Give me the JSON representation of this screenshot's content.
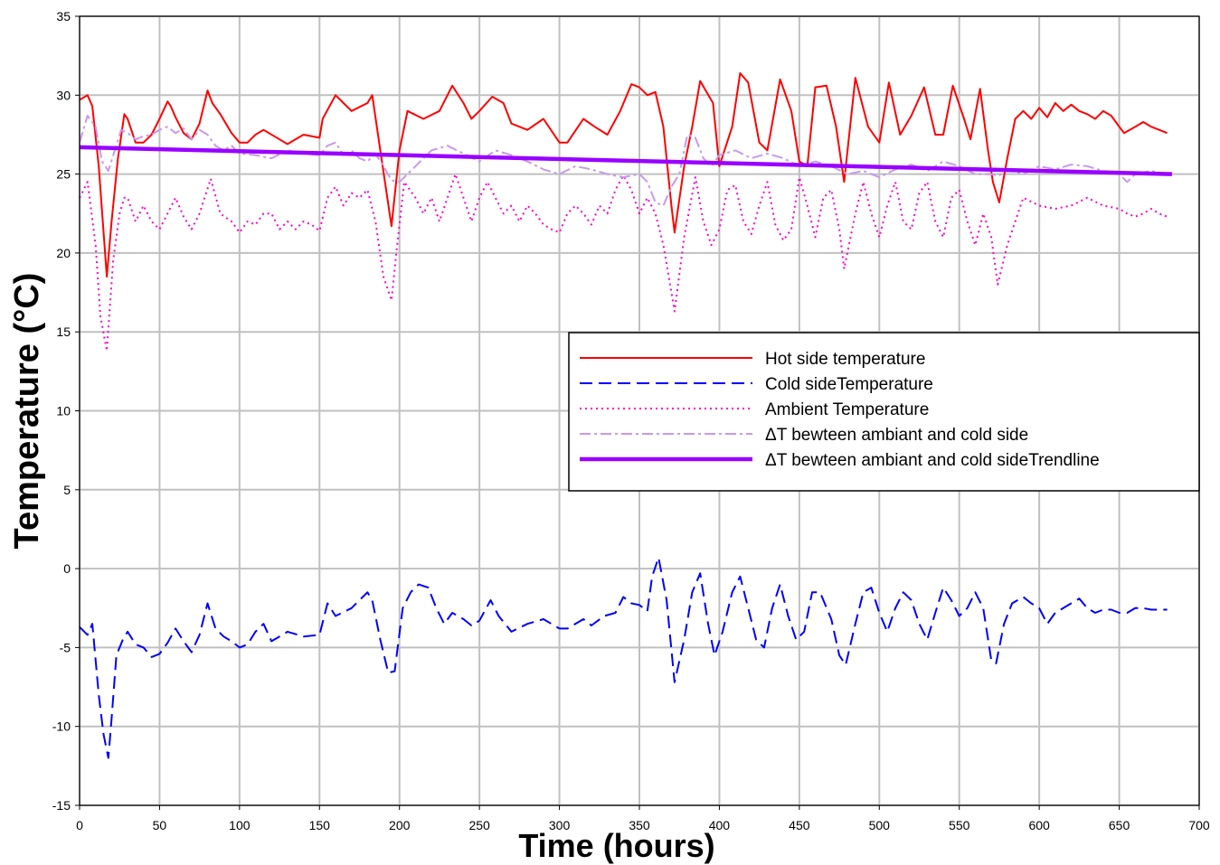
{
  "chart_data": {
    "type": "line",
    "xlabel": "Time (hours)",
    "ylabel": "Temperature (°C)",
    "xlim": [
      0,
      700
    ],
    "ylim": [
      -15,
      35
    ],
    "xticks": [
      0,
      50,
      100,
      150,
      200,
      250,
      300,
      350,
      400,
      450,
      500,
      550,
      600,
      650,
      700
    ],
    "yticks": [
      -15,
      -10,
      -5,
      0,
      5,
      10,
      15,
      20,
      25,
      30,
      35
    ],
    "grid": true,
    "legend_position": "center-right",
    "series": [
      {
        "name": "Hot side temperature",
        "color": "#ff0000",
        "style": "solid",
        "x": [
          0,
          5,
          8,
          12,
          17,
          20,
          24,
          28,
          30,
          35,
          40,
          45,
          50,
          55,
          57,
          60,
          65,
          70,
          75,
          80,
          83,
          88,
          95,
          100,
          105,
          110,
          115,
          125,
          130,
          140,
          150,
          152,
          160,
          170,
          180,
          183,
          188,
          195,
          200,
          205,
          215,
          225,
          233,
          240,
          245,
          250,
          258,
          265,
          270,
          280,
          290,
          300,
          305,
          315,
          322,
          330,
          338,
          345,
          350,
          355,
          360,
          365,
          370,
          372,
          378,
          383,
          388,
          396,
          400,
          408,
          413,
          418,
          425,
          430,
          438,
          445,
          450,
          455,
          460,
          467,
          473,
          478,
          485,
          493,
          500,
          506,
          513,
          520,
          528,
          535,
          540,
          546,
          553,
          557,
          563,
          568,
          571,
          575,
          580,
          585,
          590,
          595,
          600,
          605,
          610,
          615,
          620,
          625,
          630,
          635,
          640,
          645,
          650,
          653,
          660,
          665,
          670,
          675,
          680
        ],
        "y": [
          29.7,
          30.0,
          29.3,
          25.5,
          18.5,
          22,
          26.0,
          28.8,
          28.5,
          27.0,
          27.0,
          27.5,
          28.5,
          29.6,
          29.3,
          28.6,
          27.6,
          27.2,
          28.2,
          30.3,
          29.5,
          28.8,
          27.6,
          27.0,
          27.0,
          27.5,
          27.8,
          27.2,
          26.9,
          27.5,
          27.3,
          28.5,
          30.0,
          29.0,
          29.5,
          30.0,
          26.5,
          21.7,
          26.5,
          29.0,
          28.5,
          29.0,
          30.6,
          29.5,
          28.5,
          29.0,
          29.9,
          29.5,
          28.2,
          27.8,
          28.5,
          27.0,
          27.0,
          28.5,
          28.0,
          27.5,
          29.0,
          30.7,
          30.5,
          30.0,
          30.2,
          28.0,
          23.0,
          21.3,
          25.5,
          28.0,
          30.9,
          29.5,
          25.5,
          28.0,
          31.4,
          30.8,
          27.0,
          26.5,
          31.0,
          29.0,
          25.8,
          25.5,
          30.5,
          30.6,
          28.0,
          24.5,
          31.1,
          28.0,
          27.0,
          30.8,
          27.5,
          28.7,
          30.5,
          27.5,
          27.5,
          30.6,
          28.5,
          27.2,
          30.4,
          26.5,
          24.5,
          23.2,
          26.0,
          28.5,
          29.0,
          28.5,
          29.2,
          28.6,
          29.5,
          29.0,
          29.4,
          29.0,
          28.8,
          28.5,
          29.0,
          28.7,
          28.0,
          27.6,
          28.0,
          28.3,
          28.0,
          27.8,
          27.6
        ]
      },
      {
        "name": "Cold sideTemperature",
        "color": "#0000ff",
        "style": "dashed",
        "x": [
          0,
          5,
          8,
          12,
          15,
          18,
          20,
          23,
          27,
          30,
          35,
          40,
          45,
          50,
          55,
          60,
          65,
          70,
          75,
          80,
          85,
          90,
          95,
          100,
          105,
          110,
          115,
          120,
          125,
          130,
          140,
          150,
          155,
          160,
          170,
          175,
          180,
          183,
          188,
          193,
          197,
          202,
          207,
          212,
          218,
          223,
          228,
          233,
          240,
          245,
          250,
          257,
          262,
          270,
          280,
          290,
          300,
          305,
          315,
          320,
          328,
          335,
          340,
          345,
          350,
          355,
          358,
          362,
          367,
          372,
          378,
          383,
          388,
          393,
          397,
          402,
          408,
          413,
          418,
          423,
          428,
          433,
          438,
          443,
          448,
          453,
          458,
          463,
          470,
          475,
          479,
          485,
          490,
          495,
          500,
          505,
          510,
          515,
          520,
          525,
          530,
          535,
          540,
          545,
          550,
          555,
          560,
          565,
          570,
          573,
          578,
          583,
          590,
          595,
          600,
          605,
          610,
          615,
          620,
          625,
          630,
          635,
          640,
          645,
          650,
          655,
          660,
          665,
          670,
          675,
          680
        ],
        "y": [
          -3.7,
          -4.2,
          -3.5,
          -8.0,
          -10.5,
          -12.0,
          -9.5,
          -5.5,
          -4.5,
          -4.0,
          -4.8,
          -5.0,
          -5.6,
          -5.4,
          -4.7,
          -3.8,
          -4.6,
          -5.3,
          -4.2,
          -2.2,
          -3.8,
          -4.3,
          -4.6,
          -5.0,
          -4.8,
          -4.0,
          -3.5,
          -4.6,
          -4.3,
          -4.0,
          -4.3,
          -4.2,
          -2.2,
          -3.0,
          -2.5,
          -2.0,
          -1.5,
          -2.0,
          -4.5,
          -6.6,
          -6.5,
          -2.5,
          -1.5,
          -1.0,
          -1.2,
          -2.5,
          -3.5,
          -2.8,
          -3.2,
          -3.6,
          -3.3,
          -2.0,
          -3.0,
          -4.0,
          -3.5,
          -3.2,
          -3.8,
          -3.8,
          -3.2,
          -3.6,
          -3.0,
          -2.8,
          -1.8,
          -2.2,
          -2.3,
          -2.7,
          -0.5,
          0.7,
          -2.0,
          -7.2,
          -4.5,
          -1.5,
          -0.3,
          -3.5,
          -5.5,
          -4.0,
          -1.5,
          -0.5,
          -2.5,
          -4.5,
          -5.0,
          -2.5,
          -1.0,
          -3.0,
          -4.5,
          -4.0,
          -1.5,
          -1.5,
          -3.2,
          -5.5,
          -6.1,
          -3.5,
          -1.5,
          -1.2,
          -2.8,
          -4.0,
          -2.5,
          -1.5,
          -2.0,
          -3.5,
          -4.5,
          -2.8,
          -1.2,
          -2.0,
          -3.0,
          -2.5,
          -1.5,
          -2.5,
          -5.8,
          -6.0,
          -3.5,
          -2.2,
          -1.8,
          -2.2,
          -2.5,
          -3.5,
          -2.8,
          -2.5,
          -2.2,
          -1.9,
          -2.5,
          -2.8,
          -2.6,
          -2.6,
          -2.8,
          -2.8,
          -2.5,
          -2.5,
          -2.6,
          -2.6,
          -2.6
        ]
      },
      {
        "name": "Ambient Temperature",
        "color": "#ff00cc",
        "style": "dotted",
        "x": [
          0,
          5,
          10,
          13,
          17,
          21,
          25,
          28,
          30,
          35,
          40,
          45,
          50,
          55,
          60,
          65,
          70,
          75,
          82,
          88,
          95,
          100,
          105,
          110,
          115,
          120,
          125,
          130,
          135,
          140,
          145,
          150,
          155,
          160,
          165,
          170,
          175,
          180,
          185,
          190,
          195,
          198,
          203,
          210,
          215,
          220,
          225,
          230,
          235,
          240,
          245,
          250,
          255,
          260,
          265,
          270,
          275,
          280,
          285,
          290,
          295,
          300,
          305,
          310,
          315,
          320,
          325,
          330,
          335,
          340,
          345,
          350,
          355,
          360,
          365,
          370,
          372,
          378,
          385,
          390,
          395,
          400,
          405,
          410,
          415,
          420,
          425,
          430,
          435,
          440,
          445,
          450,
          455,
          460,
          465,
          470,
          475,
          478,
          485,
          490,
          495,
          500,
          505,
          510,
          515,
          520,
          525,
          530,
          535,
          540,
          545,
          550,
          555,
          560,
          565,
          570,
          574,
          580,
          585,
          590,
          600,
          610,
          620,
          630,
          640,
          650,
          655,
          660,
          665,
          670,
          675,
          680
        ],
        "y": [
          23.5,
          24.5,
          20.5,
          16.0,
          13.8,
          19.5,
          22.5,
          23.5,
          23.5,
          22.0,
          23.0,
          22.0,
          21.5,
          22.5,
          23.5,
          22.3,
          21.5,
          22.5,
          24.7,
          22.5,
          22.0,
          21.3,
          22.0,
          21.8,
          22.5,
          22.5,
          21.5,
          22.0,
          21.5,
          22.0,
          21.8,
          21.4,
          23.5,
          24.2,
          23.0,
          23.8,
          23.5,
          24.0,
          22.0,
          18.5,
          17.0,
          20.0,
          24.5,
          23.5,
          22.5,
          23.5,
          22.0,
          23.5,
          25.0,
          23.5,
          22.0,
          23.5,
          24.5,
          23.5,
          22.5,
          23.0,
          22.0,
          23.0,
          22.5,
          21.8,
          21.5,
          21.3,
          22.5,
          23.0,
          22.5,
          21.8,
          23.0,
          22.5,
          24.0,
          24.9,
          24.0,
          22.5,
          23.5,
          22.5,
          20.5,
          17.5,
          16.3,
          21.0,
          24.8,
          22.0,
          20.5,
          21.5,
          24.0,
          24.3,
          22.0,
          21.2,
          23.0,
          24.5,
          21.8,
          20.8,
          21.5,
          24.8,
          23.0,
          21.0,
          23.5,
          24.0,
          21.5,
          19.0,
          22.5,
          24.5,
          22.5,
          21.0,
          23.0,
          24.5,
          22.0,
          21.5,
          23.8,
          24.5,
          22.0,
          21.0,
          23.5,
          24.0,
          22.0,
          20.5,
          22.5,
          21.0,
          18.0,
          20.5,
          22.0,
          23.5,
          23.0,
          22.8,
          23.0,
          23.5,
          23.0,
          22.8,
          22.5,
          22.3,
          22.5,
          22.8,
          22.5,
          22.3
        ]
      },
      {
        "name": "ΔT bewteen ambiant and cold side",
        "color": "#c799ee",
        "style": "dashdot",
        "x": [
          0,
          5,
          10,
          14,
          18,
          22,
          26,
          30,
          35,
          40,
          45,
          50,
          55,
          60,
          65,
          70,
          75,
          80,
          85,
          90,
          95,
          100,
          110,
          120,
          130,
          140,
          150,
          155,
          160,
          165,
          170,
          175,
          180,
          185,
          190,
          195,
          200,
          205,
          210,
          215,
          220,
          230,
          240,
          250,
          260,
          270,
          280,
          290,
          300,
          310,
          320,
          330,
          340,
          350,
          355,
          360,
          365,
          370,
          375,
          380,
          385,
          390,
          395,
          400,
          410,
          420,
          430,
          440,
          450,
          460,
          470,
          480,
          490,
          500,
          510,
          520,
          530,
          540,
          550,
          560,
          570,
          575,
          580,
          590,
          600,
          610,
          620,
          630,
          640,
          650,
          655,
          660,
          670,
          680
        ],
        "y": [
          27.0,
          28.7,
          28.0,
          25.8,
          25.2,
          26.5,
          27.8,
          27.6,
          27.2,
          27.4,
          27.5,
          27.8,
          28.0,
          27.6,
          27.9,
          27.2,
          27.8,
          27.5,
          26.8,
          26.5,
          26.8,
          26.3,
          26.2,
          26.0,
          26.5,
          26.3,
          26.2,
          26.8,
          27.0,
          26.2,
          26.5,
          26.0,
          25.8,
          26.3,
          25.5,
          24.6,
          24.5,
          25.0,
          25.5,
          26.0,
          26.5,
          26.8,
          26.3,
          25.8,
          26.5,
          26.2,
          25.8,
          25.3,
          25.0,
          25.5,
          25.3,
          25.0,
          24.8,
          25.0,
          24.5,
          23.2,
          23.0,
          24.2,
          25.0,
          27.5,
          27.3,
          26.0,
          25.5,
          26.2,
          26.5,
          26.0,
          26.3,
          26.0,
          25.5,
          25.8,
          25.5,
          25.0,
          25.2,
          24.8,
          25.3,
          25.6,
          25.2,
          25.8,
          25.5,
          25.0,
          25.0,
          24.9,
          25.3,
          25.0,
          25.5,
          25.3,
          25.6,
          25.5,
          25.2,
          25.0,
          24.5,
          25.0,
          25.2,
          25.0
        ]
      },
      {
        "name": "ΔT bewteen ambiant and cold sideTrendline",
        "color": "#9900ff",
        "style": "solid-thick",
        "x": [
          0,
          683
        ],
        "y": [
          26.7,
          25.0
        ]
      }
    ]
  }
}
